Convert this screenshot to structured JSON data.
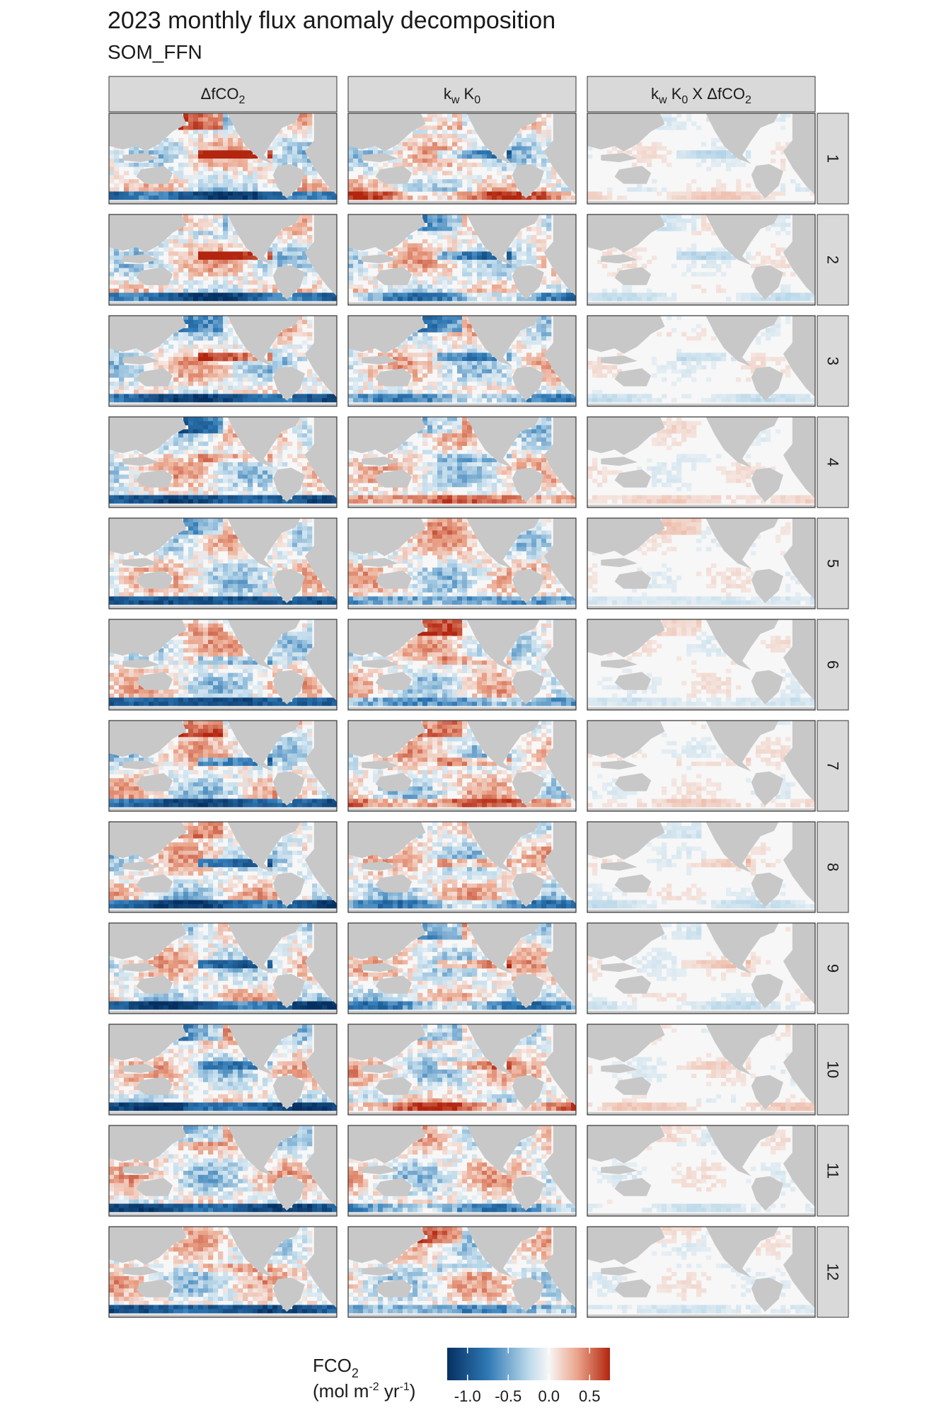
{
  "title": "2023 monthly flux anomaly decomposition",
  "subtitle": "SOM_FFN",
  "chart_data": {
    "type": "heatmap",
    "description_of_layout": "faceted grid of global ocean anomaly maps",
    "columns": [
      {
        "id": "dfco2",
        "label_parts": [
          "ΔfCO",
          "2",
          ""
        ]
      },
      {
        "id": "kwk0",
        "label_parts": [
          "k",
          "w",
          " K",
          "0",
          ""
        ]
      },
      {
        "id": "kwk0xdfco2",
        "label_parts": [
          "k",
          "w",
          " K",
          "0",
          " X ΔfCO",
          "2",
          ""
        ]
      }
    ],
    "rows": [
      "1",
      "2",
      "3",
      "4",
      "5",
      "6",
      "7",
      "8",
      "9",
      "10",
      "11",
      "12"
    ],
    "legend": {
      "title_parts": [
        "FCO",
        "2"
      ],
      "unit_parts": [
        "(mol m",
        "-2",
        " yr",
        "-1",
        ")"
      ],
      "ticks": [
        "-1.0",
        "-0.5",
        "0.0",
        "0.5"
      ],
      "tick_values": [
        -1.0,
        -0.5,
        0.0,
        0.5
      ],
      "range": [
        -1.25,
        0.75
      ],
      "colors": {
        "low": "#053061",
        "mid_low": "#4393c3",
        "mid": "#f7f7f7",
        "mid_high": "#d6604d",
        "high": "#b2250f"
      }
    },
    "colors": {
      "land": "#c8c8c8",
      "strip_fill": "#d9d9d9",
      "panel_border": "#333333"
    }
  }
}
